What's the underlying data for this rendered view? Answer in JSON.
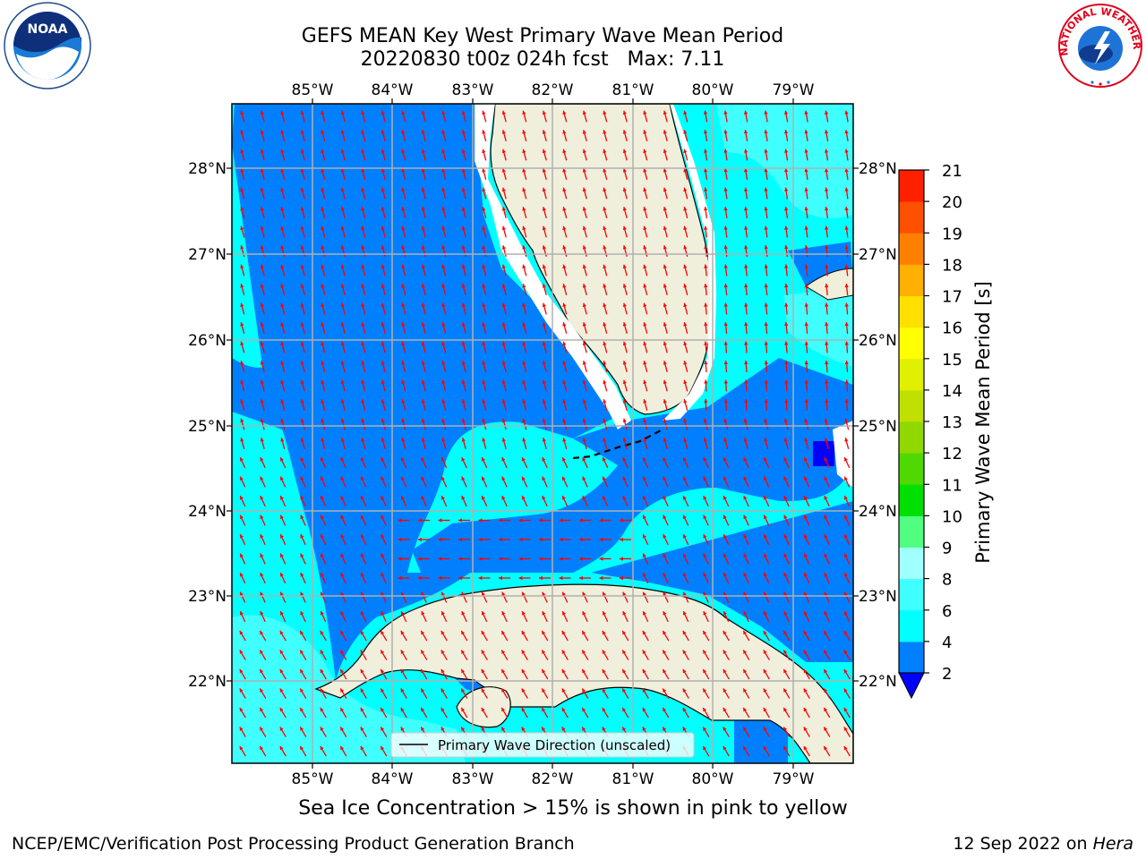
{
  "title_line1": "GEFS MEAN Key West Primary Wave Mean Period",
  "title_line2": "20220830 t00z 024h fcst   Max: 7.11",
  "map": {
    "lon_labels": [
      "85°W",
      "84°W",
      "83°W",
      "82°W",
      "81°W",
      "80°W",
      "79°W"
    ],
    "lat_labels": [
      "28°N",
      "27°N",
      "26°N",
      "25°N",
      "24°N",
      "23°N",
      "22°N"
    ],
    "legend_label": "Primary Wave Direction (unscaled)",
    "colors": {
      "land": "#efefdc",
      "arrow": "#ff0000",
      "grid": "#b0b0b0"
    }
  },
  "colorbar": {
    "label": "Primary Wave Mean Period [s]",
    "ticks": [
      "2",
      "4",
      "6",
      "8",
      "9",
      "10",
      "11",
      "12",
      "13",
      "14",
      "15",
      "16",
      "17",
      "18",
      "19",
      "20",
      "21"
    ],
    "colors": [
      "#0080ff",
      "#00ffff",
      "#40ffff",
      "#a0ffff",
      "#50ff80",
      "#00e000",
      "#50d800",
      "#90d800",
      "#c0e000",
      "#e0f000",
      "#ffff00",
      "#ffe000",
      "#ffb000",
      "#ff8000",
      "#ff5000",
      "#ff2000",
      "#ff0000"
    ],
    "under_color": "#0000ff"
  },
  "footer": {
    "ice_note": "Sea Ice Concentration > 15% is shown in pink to yellow",
    "left": "NCEP/EMC/Verification Post Processing Product Generation Branch",
    "right_date": "12 Sep 2022 on ",
    "right_host": "Hera"
  },
  "logos": {
    "noaa_text": "NOAA",
    "nws_text": "NATIONAL WEATHER SERVICE"
  }
}
